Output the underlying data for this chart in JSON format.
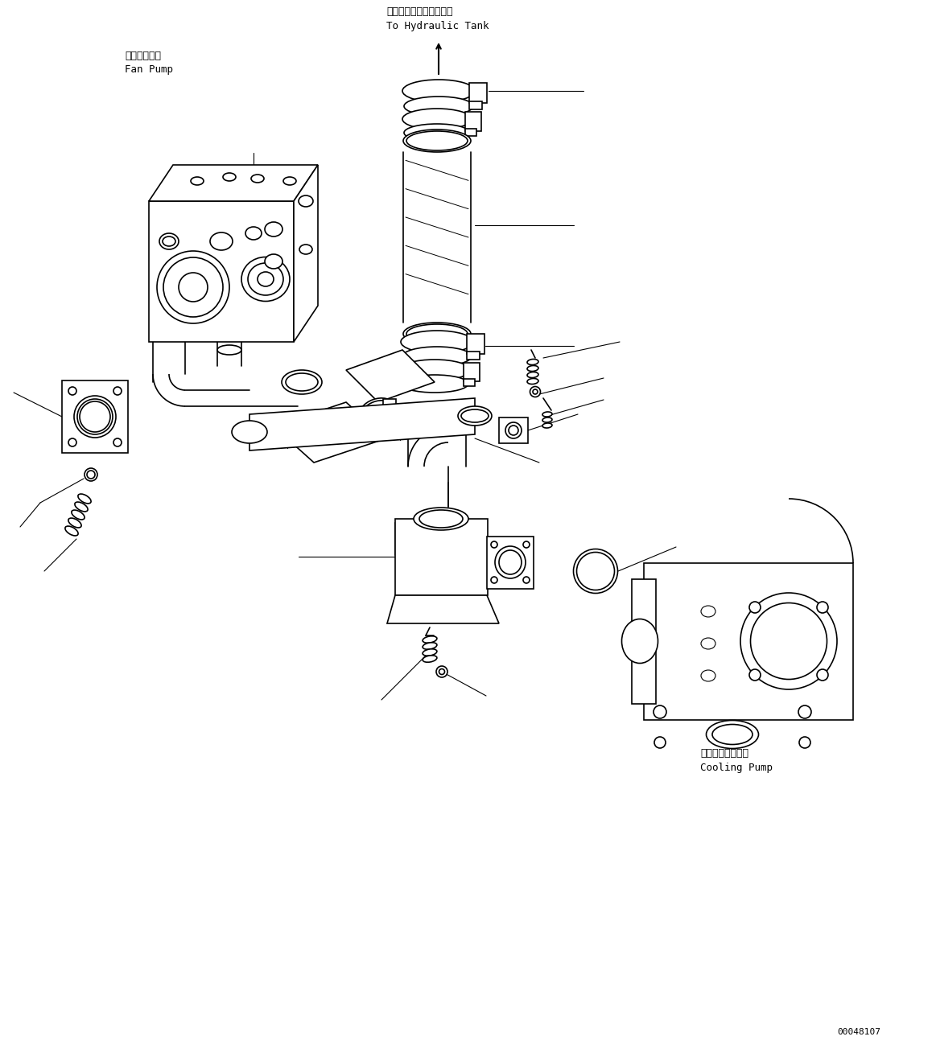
{
  "bg_color": "#ffffff",
  "lc": "#000000",
  "lw": 1.2,
  "fig_width": 11.63,
  "fig_height": 13.14,
  "dpi": 100,
  "labels": {
    "hydraulic_tank_jp": "ハイドロリックタンクへ",
    "hydraulic_tank_en": "To Hydraulic Tank",
    "fan_pump_jp": "ファンポンプ",
    "fan_pump_en": "Fan Pump",
    "cooling_pump_jp": "クーリングポンプ",
    "cooling_pump_en": "Cooling Pump",
    "doc_number": "00048107"
  }
}
